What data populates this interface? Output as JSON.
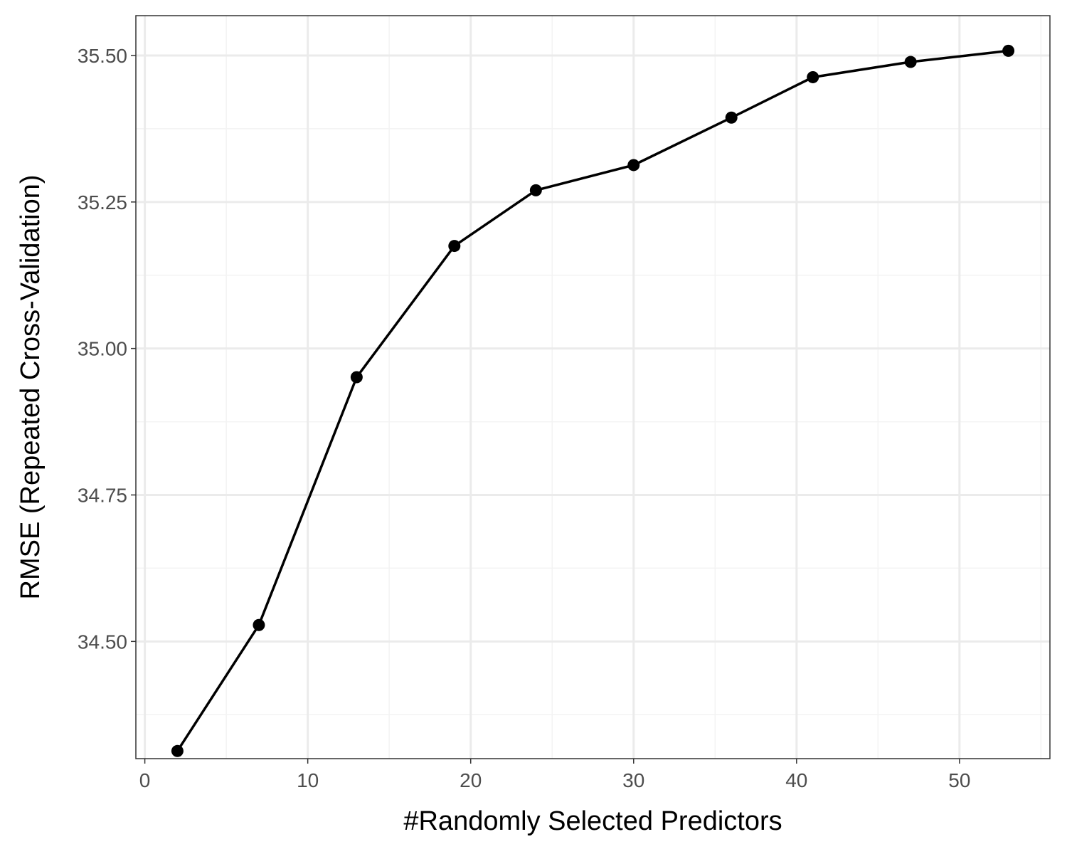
{
  "chart_data": {
    "type": "line",
    "xlabel": "#Randomly Selected Predictors",
    "ylabel": "RMSE (Repeated Cross-Validation)",
    "xlim": [
      -0.55,
      55.55
    ],
    "ylim": [
      34.3,
      35.568
    ],
    "x_ticks": [
      0,
      10,
      20,
      30,
      40,
      50
    ],
    "x_tick_labels": [
      "0",
      "10",
      "20",
      "30",
      "40",
      "50"
    ],
    "x_minor_ticks": [
      5,
      15,
      25,
      35,
      45,
      55
    ],
    "y_ticks": [
      34.5,
      34.75,
      35.0,
      35.25,
      35.5
    ],
    "y_tick_labels": [
      "34.50",
      "34.75",
      "35.00",
      "35.25",
      "35.50"
    ],
    "y_minor_ticks": [
      34.375,
      34.625,
      34.875,
      35.125,
      35.375
    ],
    "grid": true,
    "series": [
      {
        "x": [
          2,
          7,
          13,
          19,
          24,
          30,
          36,
          41,
          47,
          53
        ],
        "values": [
          34.313,
          34.528,
          34.951,
          35.175,
          35.27,
          35.313,
          35.394,
          35.463,
          35.489,
          35.508
        ]
      }
    ],
    "colors": {
      "line": "#000000",
      "grid_major": "#ebebeb",
      "grid_minor": "#f3f3f3",
      "panel_border": "#333333"
    }
  }
}
